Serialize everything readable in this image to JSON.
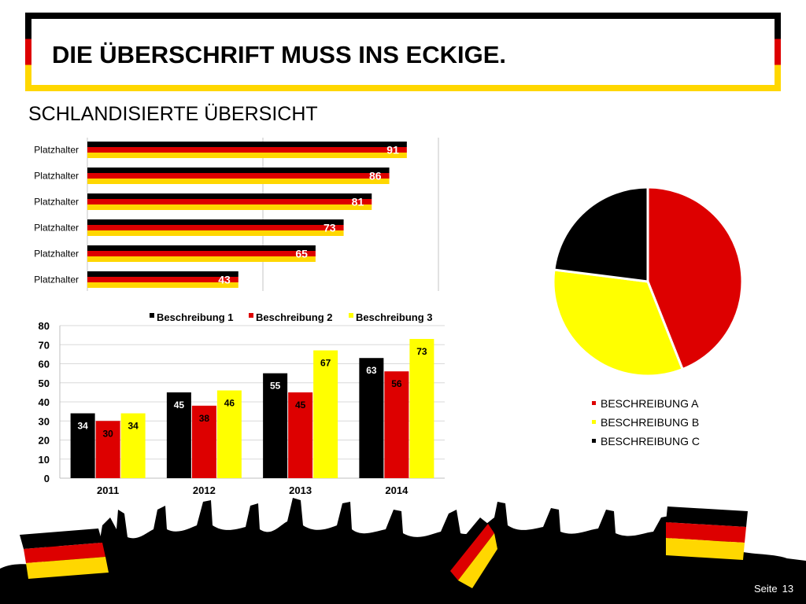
{
  "slide": {
    "title": "DIE ÜBERSCHRIFT MUSS INS ECKIGE.",
    "subtitle": "SCHLANDISIERTE ÜBERSICHT",
    "page_label": "Seite",
    "page_number": "13"
  },
  "colors": {
    "black": "#000000",
    "red": "#dd0000",
    "gold": "#ffd700",
    "yellow": "#ffff00",
    "grid": "#d9d9d9"
  },
  "chart_data": [
    {
      "type": "bar",
      "orientation": "horizontal",
      "categories": [
        "Platzhalter",
        "Platzhalter",
        "Platzhalter",
        "Platzhalter",
        "Platzhalter",
        "Platzhalter"
      ],
      "values": [
        91,
        86,
        81,
        73,
        65,
        43
      ],
      "xlim": [
        0,
        100
      ],
      "grid": true,
      "bar_style": "black-red-gold stripes"
    },
    {
      "type": "bar",
      "orientation": "vertical",
      "categories": [
        "2011",
        "2012",
        "2013",
        "2014"
      ],
      "series": [
        {
          "name": "Beschreibung 1",
          "values": [
            34,
            45,
            55,
            63
          ],
          "color": "#000000"
        },
        {
          "name": "Beschreibung 2",
          "values": [
            30,
            38,
            45,
            56
          ],
          "color": "#dd0000"
        },
        {
          "name": "Beschreibung 3",
          "values": [
            34,
            46,
            67,
            73
          ],
          "color": "#ffff00"
        }
      ],
      "ylim": [
        0,
        80
      ],
      "yticks": [
        0,
        10,
        20,
        30,
        40,
        50,
        60,
        70,
        80
      ],
      "legend": "top",
      "grid": true
    },
    {
      "type": "pie",
      "categories": [
        "BESCHREIBUNG A",
        "BESCHREIBUNG B",
        "BESCHREIBUNG C"
      ],
      "values": [
        44,
        33,
        23
      ],
      "colors": [
        "#dd0000",
        "#ffff00",
        "#000000"
      ],
      "legend": "bottom"
    }
  ]
}
